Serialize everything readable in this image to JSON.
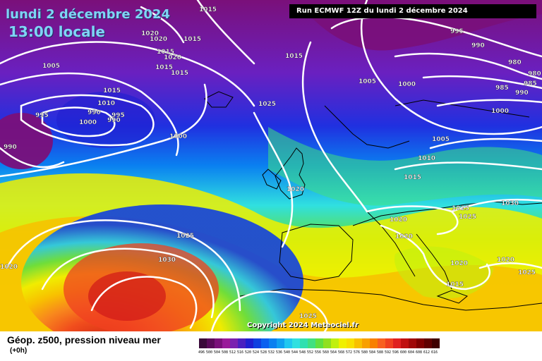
{
  "title": {
    "date": "lundi 2 décembre 2024",
    "time": "13:00 locale"
  },
  "run_info": "Run ECMWF 12Z du lundi 2 décembre 2024",
  "copyright": "Copyright 2024 Meteociel.fr",
  "legend": {
    "label": "Géop. z500, pression niveau mer",
    "step": "(+0h)",
    "scale_values": [
      "496",
      "500",
      "504",
      "508",
      "512",
      "516",
      "520",
      "524",
      "528",
      "532",
      "536",
      "540",
      "544",
      "548",
      "552",
      "556",
      "560",
      "564",
      "568",
      "572",
      "576",
      "580",
      "584",
      "588",
      "592",
      "596",
      "600",
      "604",
      "608",
      "612",
      "616"
    ],
    "scale_colors": [
      "#3a0a3a",
      "#5a0a5a",
      "#7a107a",
      "#9a1a9a",
      "#7a20b0",
      "#4a20c0",
      "#2020d0",
      "#1040e0",
      "#0a60f0",
      "#0a80f0",
      "#10a0f0",
      "#20c8f0",
      "#30e0e0",
      "#30e0b0",
      "#40e080",
      "#60e040",
      "#90e020",
      "#c0f010",
      "#f0f000",
      "#f8e000",
      "#f8c000",
      "#f8a000",
      "#f88000",
      "#f86020",
      "#f04020",
      "#e02020",
      "#c01010",
      "#a00808",
      "#800000",
      "#600000",
      "#400000"
    ]
  },
  "isobar_labels": [
    "1015",
    "1020",
    "1020",
    "1015",
    "1015",
    "1020",
    "1015",
    "1015",
    "995",
    "990",
    "985",
    "980",
    "1005",
    "1015",
    "1005",
    "1000",
    "980",
    "985",
    "990",
    "1005",
    "1000",
    "1015",
    "1010",
    "995",
    "990",
    "1000",
    "995",
    "985",
    "990",
    "1000",
    "1025",
    "1000",
    "1005",
    "1010",
    "1020",
    "1015",
    "1025",
    "1030",
    "1025",
    "1020",
    "1020",
    "1020",
    "1025",
    "1030",
    "1020",
    "1015",
    "1020",
    "1025",
    "1015",
    "1025",
    "1010"
  ],
  "colors": {
    "contour": "#ffffff",
    "land_outline": "#000000"
  }
}
